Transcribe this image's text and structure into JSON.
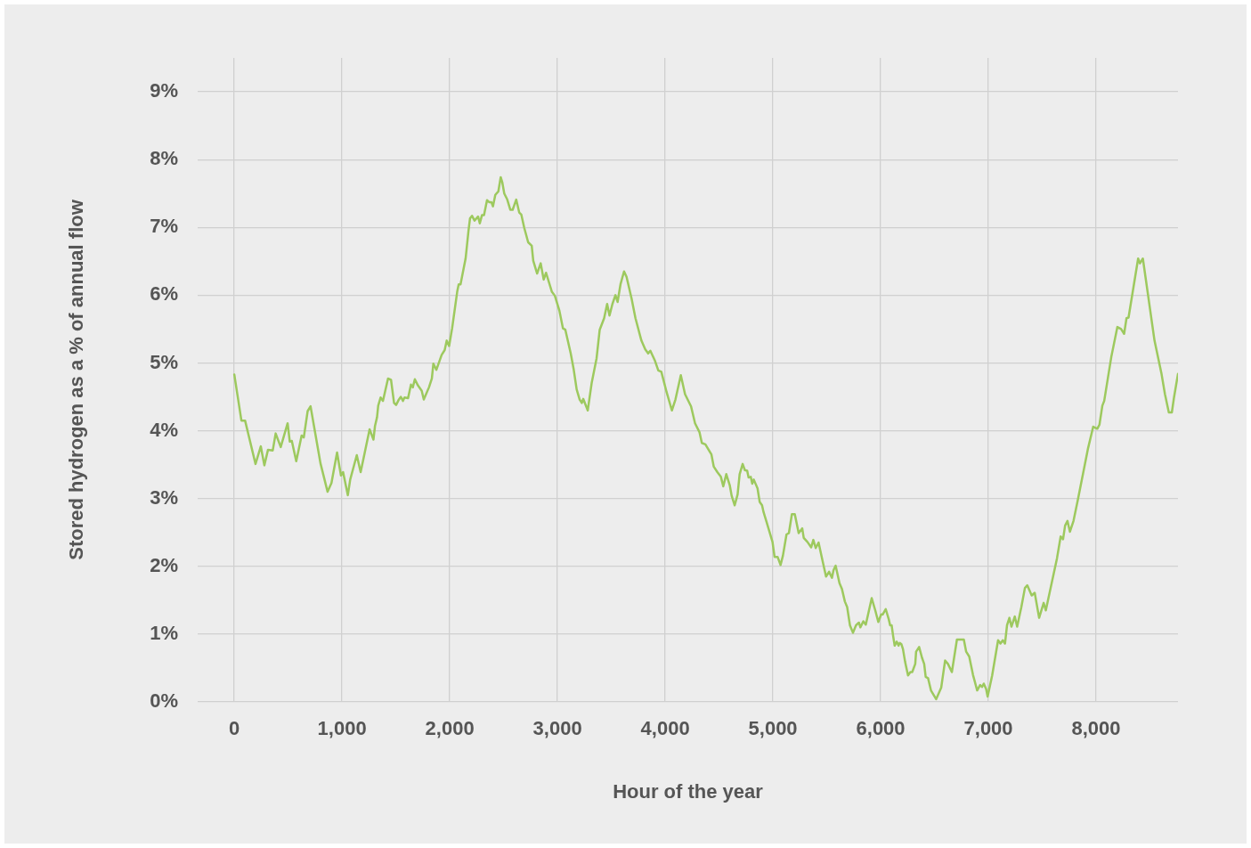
{
  "chart_data": {
    "type": "line",
    "xlabel": "Hour of the year",
    "ylabel": "Stored hydrogen as a % of annual flow",
    "xlim": [
      -340,
      8760
    ],
    "ylim": [
      0,
      9.5
    ],
    "xticks": [
      {
        "value": 0,
        "label": "0"
      },
      {
        "value": 1000,
        "label": "1,000"
      },
      {
        "value": 2000,
        "label": "2,000"
      },
      {
        "value": 3000,
        "label": "3,000"
      },
      {
        "value": 4000,
        "label": "4,000"
      },
      {
        "value": 5000,
        "label": "5,000"
      },
      {
        "value": 6000,
        "label": "6,000"
      },
      {
        "value": 7000,
        "label": "7,000"
      },
      {
        "value": 8000,
        "label": "8,000"
      }
    ],
    "yticks": [
      {
        "value": 0,
        "label": "0%"
      },
      {
        "value": 1,
        "label": "1%"
      },
      {
        "value": 2,
        "label": "2%"
      },
      {
        "value": 3,
        "label": "3%"
      },
      {
        "value": 4,
        "label": "4%"
      },
      {
        "value": 5,
        "label": "5%"
      },
      {
        "value": 6,
        "label": "6%"
      },
      {
        "value": 7,
        "label": "7%"
      },
      {
        "value": 8,
        "label": "8%"
      },
      {
        "value": 9,
        "label": "9%"
      }
    ],
    "grid": true,
    "legend": false,
    "marker": "none",
    "line_style": "solid",
    "series": [
      {
        "color": "#9dc95e",
        "x": [
          0,
          66,
          100,
          197,
          246,
          279,
          313,
          357,
          384,
          431,
          495,
          515,
          534,
          575,
          625,
          645,
          681,
          708,
          800,
          866,
          902,
          954,
          990,
          1010,
          1054,
          1076,
          1137,
          1173,
          1256,
          1292,
          1306,
          1325,
          1336,
          1358,
          1380,
          1427,
          1455,
          1483,
          1502,
          1524,
          1546,
          1566,
          1580,
          1613,
          1640,
          1657,
          1676,
          1704,
          1740,
          1759,
          1807,
          1834,
          1848,
          1876,
          1925,
          1953,
          1972,
          1994,
          2022,
          2069,
          2083,
          2100,
          2147,
          2174,
          2188,
          2207,
          2230,
          2263,
          2279,
          2299,
          2318,
          2346,
          2368,
          2387,
          2401,
          2423,
          2451,
          2473,
          2487,
          2506,
          2534,
          2562,
          2584,
          2617,
          2645,
          2664,
          2692,
          2728,
          2761,
          2775,
          2811,
          2844,
          2872,
          2894,
          2948,
          2976,
          3018,
          3051,
          3073,
          3123,
          3151,
          3178,
          3206,
          3226,
          3239,
          3281,
          3317,
          3363,
          3392,
          3433,
          3461,
          3483,
          3510,
          3538,
          3558,
          3585,
          3618,
          3641,
          3688,
          3724,
          3779,
          3815,
          3842,
          3862,
          3903,
          3936,
          3964,
          4013,
          4062,
          4095,
          4145,
          4184,
          4240,
          4277,
          4318,
          4340,
          4373,
          4429,
          4451,
          4484,
          4517,
          4539,
          4567,
          4600,
          4617,
          4645,
          4672,
          4691,
          4719,
          4739,
          4761,
          4774,
          4794,
          4808,
          4822,
          4857,
          4877,
          4899,
          4913,
          4940,
          4996,
          5015,
          5043,
          5071,
          5093,
          5126,
          5148,
          5176,
          5203,
          5239,
          5272,
          5286,
          5320,
          5355,
          5375,
          5397,
          5424,
          5465,
          5493,
          5521,
          5548,
          5562,
          5582,
          5618,
          5640,
          5668,
          5689,
          5715,
          5743,
          5771,
          5798,
          5812,
          5839,
          5862,
          5917,
          5950,
          5978,
          6005,
          6019,
          6047,
          6075,
          6088,
          6102,
          6116,
          6130,
          6149,
          6166,
          6177,
          6193,
          6207,
          6227,
          6254,
          6276,
          6293,
          6321,
          6329,
          6357,
          6384,
          6404,
          6418,
          6440,
          6467,
          6515,
          6562,
          6598,
          6625,
          6661,
          6708,
          6772,
          6794,
          6822,
          6857,
          6896,
          6924,
          6941,
          6957,
          6979,
          6993,
          7035,
          7090,
          7112,
          7134,
          7154,
          7173,
          7195,
          7214,
          7245,
          7267,
          7306,
          7339,
          7361,
          7402,
          7430,
          7471,
          7513,
          7533,
          7637,
          7671,
          7693,
          7712,
          7734,
          7757,
          7790,
          7829,
          7925,
          7973,
          8011,
          8031,
          8058,
          8075,
          8141,
          8197,
          8232,
          8260,
          8282,
          8301,
          8390,
          8407,
          8434,
          8542,
          8606,
          8639,
          8675,
          8703,
          8722,
          8760
        ],
        "values": [
          4.83,
          4.15,
          4.15,
          3.51,
          3.77,
          3.49,
          3.72,
          3.71,
          3.96,
          3.76,
          4.11,
          3.84,
          3.85,
          3.55,
          3.93,
          3.9,
          4.29,
          4.36,
          3.52,
          3.1,
          3.23,
          3.68,
          3.34,
          3.39,
          3.05,
          3.28,
          3.64,
          3.39,
          4.02,
          3.87,
          4.07,
          4.2,
          4.37,
          4.49,
          4.44,
          4.77,
          4.75,
          4.41,
          4.38,
          4.45,
          4.5,
          4.44,
          4.49,
          4.48,
          4.68,
          4.64,
          4.76,
          4.67,
          4.59,
          4.46,
          4.64,
          4.77,
          4.99,
          4.9,
          5.12,
          5.19,
          5.33,
          5.25,
          5.51,
          6.05,
          6.16,
          6.16,
          6.54,
          6.95,
          7.13,
          7.17,
          7.1,
          7.16,
          7.06,
          7.18,
          7.18,
          7.4,
          7.37,
          7.37,
          7.31,
          7.48,
          7.53,
          7.74,
          7.67,
          7.5,
          7.41,
          7.26,
          7.26,
          7.41,
          7.22,
          7.19,
          6.99,
          6.78,
          6.73,
          6.51,
          6.32,
          6.47,
          6.23,
          6.33,
          6.05,
          5.99,
          5.77,
          5.51,
          5.49,
          5.14,
          4.9,
          4.61,
          4.46,
          4.41,
          4.47,
          4.3,
          4.7,
          5.07,
          5.49,
          5.66,
          5.87,
          5.7,
          5.87,
          6,
          5.9,
          6.16,
          6.35,
          6.27,
          5.95,
          5.66,
          5.33,
          5.2,
          5.14,
          5.18,
          5.04,
          4.89,
          4.87,
          4.57,
          4.3,
          4.46,
          4.82,
          4.54,
          4.36,
          4.11,
          3.98,
          3.82,
          3.8,
          3.65,
          3.47,
          3.39,
          3.32,
          3.18,
          3.36,
          3.19,
          3.04,
          2.9,
          3.06,
          3.36,
          3.51,
          3.42,
          3.41,
          3.31,
          3.32,
          3.22,
          3.28,
          3.15,
          2.95,
          2.9,
          2.8,
          2.66,
          2.36,
          2.14,
          2.14,
          2.02,
          2.16,
          2.47,
          2.49,
          2.77,
          2.77,
          2.49,
          2.56,
          2.42,
          2.36,
          2.28,
          2.39,
          2.27,
          2.35,
          2.05,
          1.85,
          1.92,
          1.83,
          1.94,
          2.01,
          1.75,
          1.67,
          1.48,
          1.4,
          1.13,
          1.02,
          1.13,
          1.17,
          1.1,
          1.19,
          1.14,
          1.53,
          1.35,
          1.18,
          1.29,
          1.29,
          1.37,
          1.22,
          1.13,
          1.13,
          0.97,
          0.83,
          0.89,
          0.83,
          0.87,
          0.85,
          0.78,
          0.59,
          0.39,
          0.44,
          0.44,
          0.56,
          0.74,
          0.81,
          0.65,
          0.56,
          0.37,
          0.35,
          0.17,
          0.04,
          0.21,
          0.61,
          0.56,
          0.44,
          0.92,
          0.92,
          0.74,
          0.67,
          0.4,
          0.17,
          0.25,
          0.22,
          0.27,
          0.19,
          0.08,
          0.39,
          0.91,
          0.86,
          0.91,
          0.86,
          1.13,
          1.24,
          1.11,
          1.26,
          1.11,
          1.4,
          1.68,
          1.72,
          1.57,
          1.61,
          1.24,
          1.46,
          1.35,
          2.12,
          2.44,
          2.4,
          2.6,
          2.67,
          2.51,
          2.67,
          2.97,
          3.74,
          4.06,
          4.03,
          4.09,
          4.37,
          4.44,
          5.09,
          5.53,
          5.5,
          5.43,
          5.66,
          5.67,
          6.54,
          6.47,
          6.54,
          5.33,
          4.85,
          4.54,
          4.27,
          4.27,
          4.48,
          4.84
        ]
      }
    ]
  }
}
